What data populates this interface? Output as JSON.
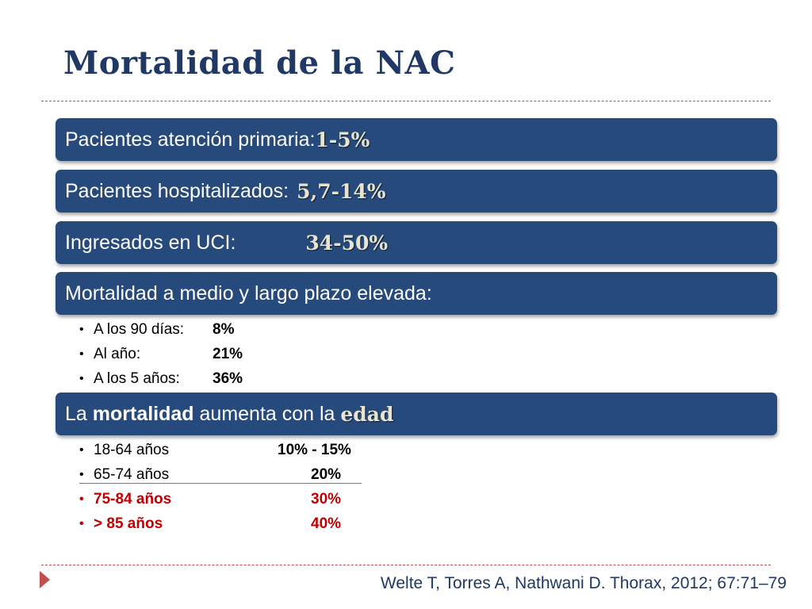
{
  "title": "Mortalidad de la NAC",
  "bars": {
    "b1": {
      "label": "Pacientes atención primaria:",
      "value": "1-5%"
    },
    "b2": {
      "label": "Pacientes hospitalizados:",
      "value": "5,7-14%"
    },
    "b3": {
      "label": "Ingresados en UCI:",
      "value": "34-50%"
    },
    "b4": {
      "label": "Mortalidad a medio y largo plazo elevada:"
    },
    "b5": {
      "pre": "La ",
      "word1": "mortalidad",
      "mid": " aumenta con la ",
      "word2": "edad"
    }
  },
  "long_term": [
    {
      "label": "A los 90 días:",
      "value": "8%"
    },
    {
      "label": "Al año:",
      "value": "21%"
    },
    {
      "label": "A los 5 años:",
      "value": "36%"
    }
  ],
  "age_groups": [
    {
      "label": "18-64 años",
      "value": "10% - 15%"
    },
    {
      "label": "65-74 años",
      "value": "20%"
    },
    {
      "label": "75-84 años",
      "value": "30%"
    },
    {
      "label": "> 85 años",
      "value": "40%"
    }
  ],
  "citation": "Welte T, Torres A, Nathwani D. Thorax, 2012; 67:71–79",
  "colors": {
    "title": "#1f3864",
    "bar": "#264a7c",
    "accent": "#c0504d",
    "highlight_red": "#c00000"
  }
}
